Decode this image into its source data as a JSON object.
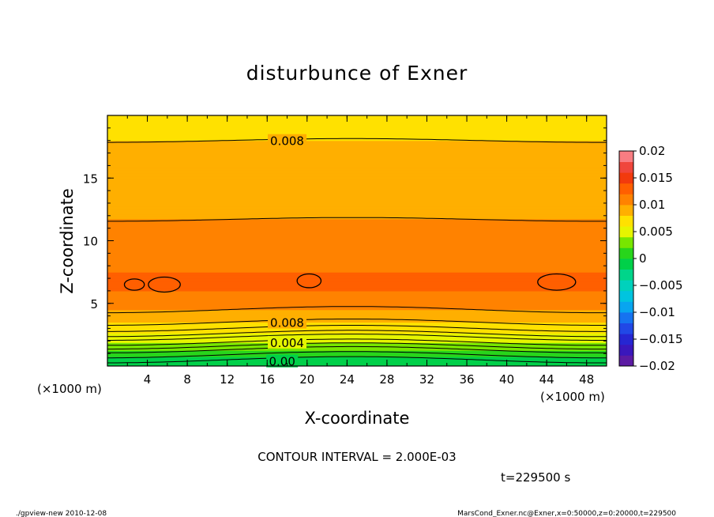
{
  "chart_data": {
    "type": "heatmap",
    "title": "disturbunce of Exner",
    "xlabel": "X-coordinate",
    "ylabel": "Z-coordinate",
    "x_unit": "(×1000 m)",
    "y_unit": "(×1000 m)",
    "xlim": [
      0,
      50
    ],
    "ylim": [
      0,
      20
    ],
    "x_ticks": [
      4,
      8,
      12,
      16,
      20,
      24,
      28,
      32,
      36,
      40,
      44,
      48
    ],
    "y_ticks": [
      5,
      10,
      15
    ],
    "colorbar": {
      "ticks": [
        "0.02",
        "0.015",
        "0.01",
        "0.005",
        "0",
        "−0.005",
        "−0.01",
        "−0.015",
        "−0.02"
      ],
      "range": [
        -0.02,
        0.02
      ],
      "step": 0.002
    },
    "field": {
      "description_values": "approximate disturbance value vs height (×1000 m)",
      "profile": [
        {
          "z": 0.3,
          "value": -0.001
        },
        {
          "z": 0.8,
          "value": 0.0
        },
        {
          "z": 1.3,
          "value": 0.002
        },
        {
          "z": 1.9,
          "value": 0.004
        },
        {
          "z": 2.6,
          "value": 0.006
        },
        {
          "z": 3.5,
          "value": 0.008
        },
        {
          "z": 4.5,
          "value": 0.01
        },
        {
          "z": 5.5,
          "value": 0.0115
        },
        {
          "z": 6.5,
          "value": 0.0125
        },
        {
          "z": 7.5,
          "value": 0.012
        },
        {
          "z": 8.5,
          "value": 0.0105
        },
        {
          "z": 10.0,
          "value": 0.01
        },
        {
          "z": 11.7,
          "value": 0.01
        },
        {
          "z": 13.5,
          "value": 0.009
        },
        {
          "z": 16.0,
          "value": 0.0085
        },
        {
          "z": 18.0,
          "value": 0.008
        },
        {
          "z": 20.0,
          "value": 0.0075
        }
      ]
    },
    "contour_labels": [
      {
        "text": "0.008",
        "x": 18.0,
        "z": 18.0
      },
      {
        "text": "0.008",
        "x": 18.0,
        "z": 3.5
      },
      {
        "text": "0.004",
        "x": 18.0,
        "z": 1.9
      },
      {
        "text": "0.00",
        "x": 17.5,
        "z": 0.4
      }
    ],
    "closed_contours": [
      {
        "x": 2.7,
        "z": 6.5,
        "rx": 1.0,
        "rz": 0.45
      },
      {
        "x": 5.7,
        "z": 6.5,
        "rx": 1.6,
        "rz": 0.6
      },
      {
        "x": 20.2,
        "z": 6.8,
        "rx": 1.2,
        "rz": 0.55
      },
      {
        "x": 45.0,
        "z": 6.7,
        "rx": 1.9,
        "rz": 0.65
      }
    ]
  },
  "annotations": {
    "contour_interval": "CONTOUR INTERVAL = 2.000E-03",
    "time": "t=229500 s",
    "footer_left": "./gpview-new   2010-12-08",
    "footer_right": "MarsCond_Exner.nc@Exner,x=0:50000,z=0:20000,t=229500"
  },
  "colors": {
    "background": "#ffffff",
    "axis": "#000000"
  }
}
